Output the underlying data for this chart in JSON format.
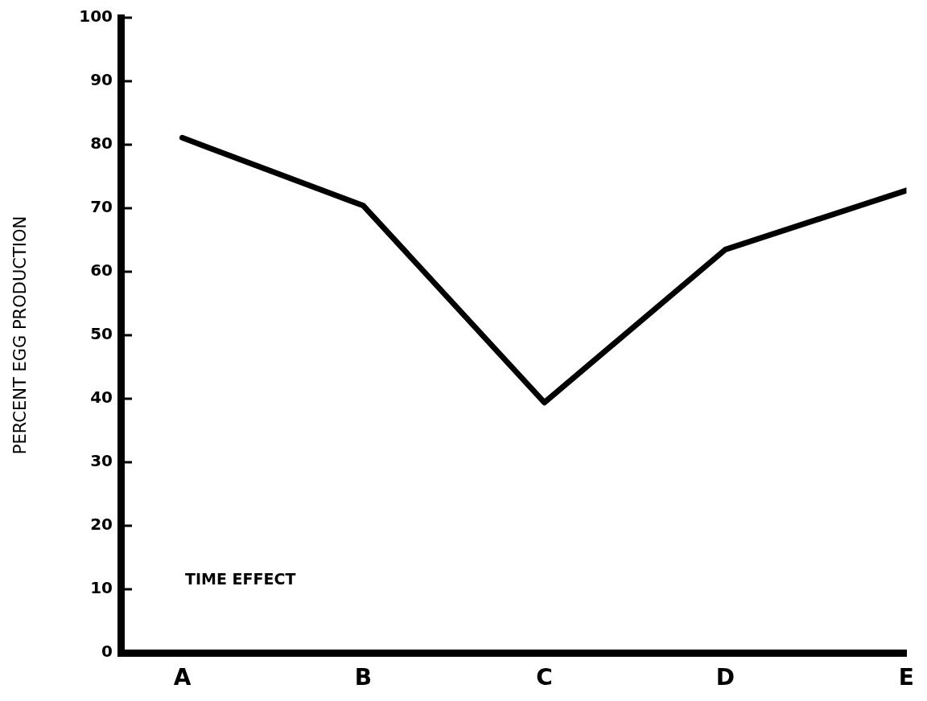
{
  "chart_data": {
    "type": "line",
    "ylabel": "PERCENT EGG PRODUCTION",
    "annotations": [
      "TIME EFFECT"
    ],
    "categories": [
      "A",
      "B",
      "C",
      "D",
      "E"
    ],
    "series": [
      {
        "color": "#000000",
        "values": [
          81.1,
          70.4,
          39.4,
          63.5,
          72.8
        ]
      }
    ],
    "ylim": [
      0,
      100
    ],
    "yticks": [
      0,
      10,
      20,
      30,
      40,
      50,
      60,
      70,
      80,
      90,
      100
    ],
    "grid": false,
    "legend": false,
    "marker": "none",
    "line_style": "solid"
  }
}
